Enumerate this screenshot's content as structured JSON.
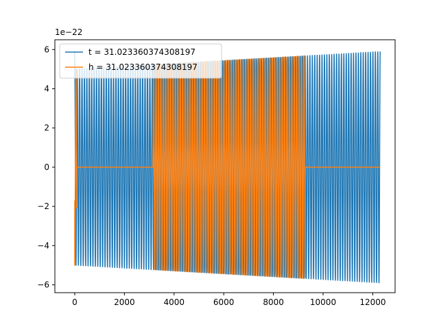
{
  "chart_data": {
    "type": "line",
    "title": "",
    "xlabel": "",
    "ylabel": "",
    "y_offset_text": "1e−22",
    "xlim": [
      -800,
      12900
    ],
    "ylim": [
      -6.4,
      6.5
    ],
    "grid": false,
    "legend_placement": "upper-left",
    "x_ticks": [
      0,
      2000,
      4000,
      6000,
      8000,
      10000,
      12000
    ],
    "x_tick_labels": [
      "0",
      "2000",
      "4000",
      "6000",
      "8000",
      "10000",
      "12000"
    ],
    "y_ticks": [
      -6,
      -4,
      -2,
      0,
      2,
      4,
      6
    ],
    "y_tick_labels": [
      "−6",
      "−4",
      "−2",
      "0",
      "2",
      "4",
      "6"
    ],
    "series": [
      {
        "name": "t = 31.023360374308197",
        "color": "#1f77b4",
        "waveform": "oscillation",
        "x_start": 0,
        "x_end": 12300,
        "n_cycles": 126,
        "amplitude_start": 5.0,
        "amplitude_end": 5.9,
        "initial_spike": 5.9,
        "flat_segments": []
      },
      {
        "name": "h = 31.023360374308197",
        "color": "#ff7f0e",
        "waveform": "oscillation",
        "x_start": 0,
        "x_end": 12300,
        "n_cycles": 95,
        "oscillation_end": 9280,
        "amplitude_start": 5.0,
        "amplitude_end": 5.9,
        "initial_value": -1.7,
        "flat_segments": [
          [
            80,
            3150
          ],
          [
            9280,
            12300
          ]
        ]
      }
    ]
  }
}
